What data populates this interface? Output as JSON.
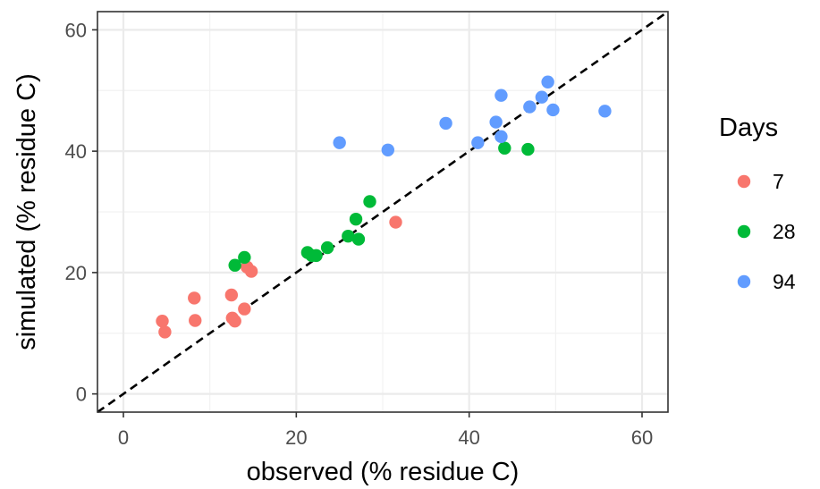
{
  "chart_data": {
    "type": "scatter",
    "xlabel": "observed (% residue C)",
    "ylabel": "simulated (% residue C)",
    "xlim": [
      -3,
      63
    ],
    "ylim": [
      -3,
      63
    ],
    "x_ticks": [
      0,
      20,
      40,
      60
    ],
    "y_ticks": [
      0,
      20,
      40,
      60
    ],
    "grid": true,
    "reference_line": {
      "type": "1:1",
      "style": "dashed",
      "color": "#000000"
    },
    "legend": {
      "title": "Days",
      "placement": "right"
    },
    "series": [
      {
        "name": "7",
        "color": "#F8766D",
        "x": [
          4.5,
          4.8,
          8.2,
          8.3,
          12.5,
          12.6,
          12.9,
          14.0,
          14.3,
          14.8,
          31.5
        ],
        "y": [
          12.0,
          10.2,
          15.8,
          12.1,
          16.3,
          12.5,
          12.0,
          14.0,
          20.9,
          20.2,
          28.3
        ]
      },
      {
        "name": "28",
        "color": "#00BA38",
        "x": [
          12.9,
          14.0,
          21.3,
          21.8,
          22.3,
          23.6,
          26.0,
          26.9,
          27.2,
          28.5,
          44.1,
          46.8
        ],
        "y": [
          21.2,
          22.5,
          23.3,
          22.8,
          22.8,
          24.1,
          26.0,
          28.8,
          25.5,
          31.7,
          40.5,
          40.3
        ]
      },
      {
        "name": "94",
        "color": "#619CFF",
        "x": [
          25.0,
          30.6,
          37.3,
          41.0,
          43.1,
          43.7,
          43.7,
          47.0,
          48.4,
          49.1,
          49.7,
          55.7
        ],
        "y": [
          41.4,
          40.2,
          44.6,
          41.4,
          44.8,
          42.4,
          49.2,
          47.3,
          48.9,
          51.4,
          46.8,
          46.6
        ]
      }
    ]
  }
}
